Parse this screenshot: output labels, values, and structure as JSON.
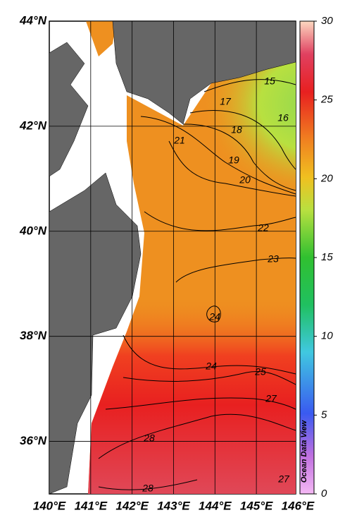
{
  "map": {
    "lat_ticks": [
      {
        "value": 44,
        "label": "44°N"
      },
      {
        "value": 42,
        "label": "42°N"
      },
      {
        "value": 40,
        "label": "40°N"
      },
      {
        "value": 38,
        "label": "38°N"
      },
      {
        "value": 36,
        "label": "36°N"
      }
    ],
    "lon_ticks": [
      {
        "value": 140,
        "label": "140°E"
      },
      {
        "value": 141,
        "label": "141°E"
      },
      {
        "value": 142,
        "label": "142°E"
      },
      {
        "value": 143,
        "label": "143°E"
      },
      {
        "value": 144,
        "label": "144°E"
      },
      {
        "value": 145,
        "label": "145°E"
      },
      {
        "value": 146,
        "label": "146°E"
      }
    ],
    "contour_labels": [
      "15",
      "16",
      "17",
      "18",
      "21",
      "19",
      "20",
      "22",
      "23",
      "24",
      "24",
      "25",
      "27",
      "28",
      "28",
      "27"
    ]
  },
  "colorbar": {
    "range": [
      0,
      30
    ],
    "ticks": [
      0,
      5,
      10,
      15,
      20,
      25,
      30
    ]
  },
  "watermark": "Ocean Data View"
}
